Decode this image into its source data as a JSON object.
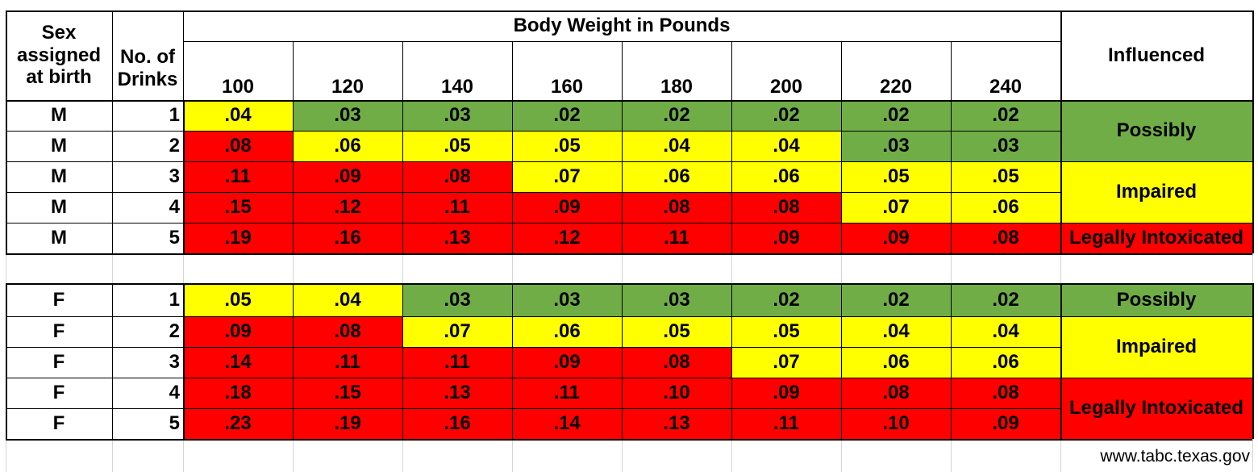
{
  "colors": {
    "green": "#70ad47",
    "yellow": "#ffff00",
    "red": "#ff0000",
    "white": "#ffffff"
  },
  "header": {
    "sex_label": [
      "Sex",
      "assigned",
      "at birth"
    ],
    "drinks_label": [
      "No. of",
      "Drinks"
    ],
    "weight_title": "Body Weight in Pounds",
    "influenced_label": "Influenced",
    "weights": [
      "100",
      "120",
      "140",
      "160",
      "180",
      "200",
      "220",
      "240"
    ]
  },
  "male_rows": [
    {
      "sex": "M",
      "drinks": "1",
      "values": [
        ".04",
        ".03",
        ".03",
        ".02",
        ".02",
        ".02",
        ".02",
        ".02"
      ],
      "colors": [
        "yellow",
        "green",
        "green",
        "green",
        "green",
        "green",
        "green",
        "green"
      ]
    },
    {
      "sex": "M",
      "drinks": "2",
      "values": [
        ".08",
        ".06",
        ".05",
        ".05",
        ".04",
        ".04",
        ".03",
        ".03"
      ],
      "colors": [
        "red",
        "yellow",
        "yellow",
        "yellow",
        "yellow",
        "yellow",
        "green",
        "green"
      ]
    },
    {
      "sex": "M",
      "drinks": "3",
      "values": [
        ".11",
        ".09",
        ".08",
        ".07",
        ".06",
        ".06",
        ".05",
        ".05"
      ],
      "colors": [
        "red",
        "red",
        "red",
        "yellow",
        "yellow",
        "yellow",
        "yellow",
        "yellow"
      ]
    },
    {
      "sex": "M",
      "drinks": "4",
      "values": [
        ".15",
        ".12",
        ".11",
        ".09",
        ".08",
        ".08",
        ".07",
        ".06"
      ],
      "colors": [
        "red",
        "red",
        "red",
        "red",
        "red",
        "red",
        "yellow",
        "yellow"
      ]
    },
    {
      "sex": "M",
      "drinks": "5",
      "values": [
        ".19",
        ".16",
        ".13",
        ".12",
        ".11",
        ".09",
        ".09",
        ".08"
      ],
      "colors": [
        "red",
        "red",
        "red",
        "red",
        "red",
        "red",
        "red",
        "red"
      ]
    }
  ],
  "male_status": [
    {
      "label": "Possibly",
      "rows": [
        0,
        1
      ],
      "color": "green"
    },
    {
      "label": "Impaired",
      "rows": [
        2,
        3
      ],
      "color": "yellow"
    },
    {
      "label": "Legally Intoxicated",
      "rows": [
        4,
        4
      ],
      "color": "red"
    }
  ],
  "female_rows": [
    {
      "sex": "F",
      "drinks": "1",
      "values": [
        ".05",
        ".04",
        ".03",
        ".03",
        ".03",
        ".02",
        ".02",
        ".02"
      ],
      "colors": [
        "yellow",
        "yellow",
        "green",
        "green",
        "green",
        "green",
        "green",
        "green"
      ]
    },
    {
      "sex": "F",
      "drinks": "2",
      "values": [
        ".09",
        ".08",
        ".07",
        ".06",
        ".05",
        ".05",
        ".04",
        ".04"
      ],
      "colors": [
        "red",
        "red",
        "yellow",
        "yellow",
        "yellow",
        "yellow",
        "yellow",
        "yellow"
      ]
    },
    {
      "sex": "F",
      "drinks": "3",
      "values": [
        ".14",
        ".11",
        ".11",
        ".09",
        ".08",
        ".07",
        ".06",
        ".06"
      ],
      "colors": [
        "red",
        "red",
        "red",
        "red",
        "red",
        "yellow",
        "yellow",
        "yellow"
      ]
    },
    {
      "sex": "F",
      "drinks": "4",
      "values": [
        ".18",
        ".15",
        ".13",
        ".11",
        ".10",
        ".09",
        ".08",
        ".08"
      ],
      "colors": [
        "red",
        "red",
        "red",
        "red",
        "red",
        "red",
        "red",
        "red"
      ]
    },
    {
      "sex": "F",
      "drinks": "5",
      "values": [
        ".23",
        ".19",
        ".16",
        ".14",
        ".13",
        ".11",
        ".10",
        ".09"
      ],
      "colors": [
        "red",
        "red",
        "red",
        "red",
        "red",
        "red",
        "red",
        "red"
      ]
    }
  ],
  "female_status": [
    {
      "label": "Possibly",
      "rows": [
        0,
        0
      ],
      "color": "green"
    },
    {
      "label": "Impaired",
      "rows": [
        1,
        2
      ],
      "color": "yellow"
    },
    {
      "label": "Legally Intoxicated",
      "rows": [
        3,
        4
      ],
      "color": "red"
    }
  ],
  "footer": {
    "source": "www.tabc.texas.gov"
  }
}
